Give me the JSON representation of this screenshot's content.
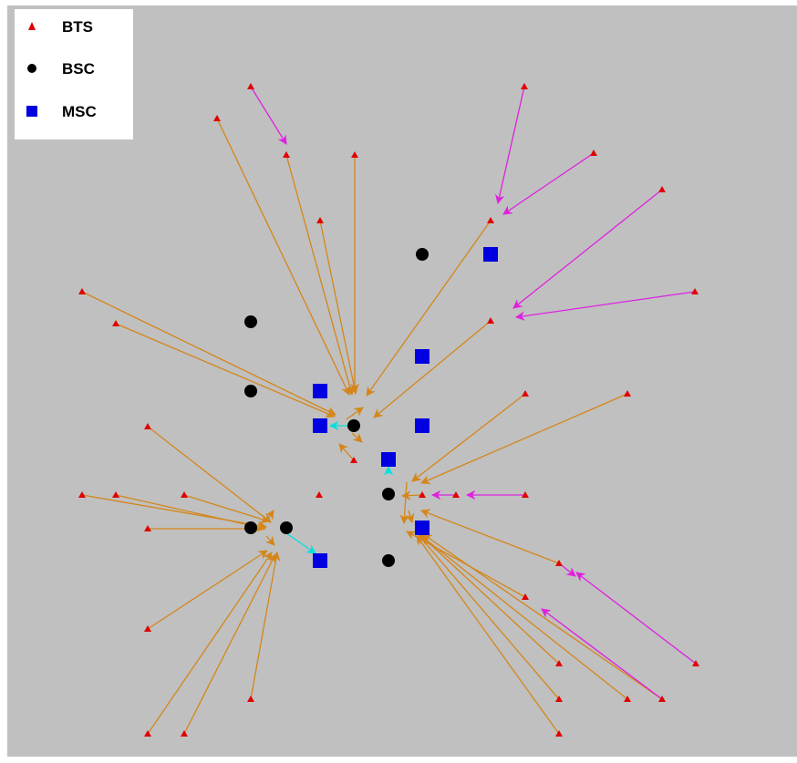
{
  "colors": {
    "background": "#c0c0c0",
    "frame": "#ffffff",
    "bts": "#e00000",
    "bsc": "#000000",
    "msc": "#0000e0",
    "link_bts_bsc": "#d4861a",
    "link_bts_bts": "#e020e0",
    "link_bsc_msc": "#00e0e0"
  },
  "legend": [
    {
      "key": "bts",
      "label": "BTS",
      "icon": "triangle-icon"
    },
    {
      "key": "bsc",
      "label": "BSC",
      "icon": "circle-icon"
    },
    {
      "key": "msc",
      "label": "MSC",
      "icon": "square-icon"
    }
  ]
}
